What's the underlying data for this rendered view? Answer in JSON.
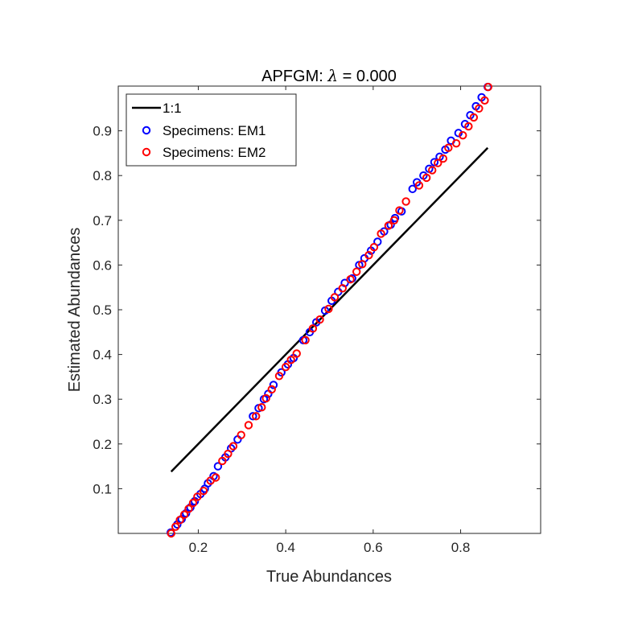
{
  "chart_data": {
    "type": "scatter",
    "title": "APFGM: λ = 0.000",
    "title_prefix": "APFGM: ",
    "title_symbol": "λ",
    "title_suffix": " = 0.000",
    "xlabel": "True Abundances",
    "ylabel": "Estimated Abundances",
    "xlim": [
      0.017,
      0.983
    ],
    "ylim": [
      0.0,
      1.0
    ],
    "xticks": [
      0.2,
      0.4,
      0.6,
      0.8
    ],
    "xtick_labels": [
      "0.2",
      "0.4",
      "0.6",
      "0.8"
    ],
    "yticks": [
      0.1,
      0.2,
      0.3,
      0.4,
      0.5,
      0.6,
      0.7,
      0.8,
      0.9
    ],
    "ytick_labels": [
      "0.1",
      "0.2",
      "0.3",
      "0.4",
      "0.5",
      "0.6",
      "0.7",
      "0.8",
      "0.9"
    ],
    "grid": false,
    "legend_position": "top-left",
    "legend": [
      "1:1",
      "Specimens: EM1",
      "Specimens: EM2"
    ],
    "line_1to1": {
      "name": "1:1",
      "x": [
        0.138,
        0.862
      ],
      "y": [
        0.138,
        0.862
      ],
      "color": "#000000"
    },
    "series": [
      {
        "name": "Specimens: EM1",
        "color": "#0000ff",
        "x": [
          0.137,
          0.152,
          0.162,
          0.172,
          0.182,
          0.192,
          0.205,
          0.215,
          0.222,
          0.235,
          0.245,
          0.262,
          0.275,
          0.29,
          0.325,
          0.338,
          0.35,
          0.36,
          0.372,
          0.39,
          0.405,
          0.418,
          0.44,
          0.455,
          0.47,
          0.49,
          0.505,
          0.52,
          0.535,
          0.552,
          0.568,
          0.58,
          0.595,
          0.61,
          0.625,
          0.64,
          0.65,
          0.665,
          0.69,
          0.7,
          0.715,
          0.728,
          0.74,
          0.752,
          0.765,
          0.778,
          0.795,
          0.81,
          0.822,
          0.835,
          0.848,
          0.862
        ],
        "y": [
          0.002,
          0.02,
          0.032,
          0.045,
          0.058,
          0.072,
          0.088,
          0.1,
          0.112,
          0.128,
          0.15,
          0.17,
          0.19,
          0.21,
          0.262,
          0.28,
          0.3,
          0.312,
          0.332,
          0.36,
          0.378,
          0.392,
          0.432,
          0.45,
          0.472,
          0.498,
          0.52,
          0.54,
          0.56,
          0.57,
          0.6,
          0.615,
          0.632,
          0.652,
          0.675,
          0.69,
          0.705,
          0.72,
          0.77,
          0.785,
          0.8,
          0.815,
          0.83,
          0.842,
          0.858,
          0.878,
          0.895,
          0.915,
          0.935,
          0.955,
          0.975,
          0.998
        ]
      },
      {
        "name": "Specimens: EM2",
        "color": "#ff0000",
        "x": [
          0.138,
          0.148,
          0.158,
          0.168,
          0.178,
          0.188,
          0.198,
          0.212,
          0.228,
          0.24,
          0.255,
          0.268,
          0.28,
          0.298,
          0.315,
          0.332,
          0.345,
          0.355,
          0.368,
          0.385,
          0.4,
          0.412,
          0.425,
          0.445,
          0.462,
          0.478,
          0.498,
          0.512,
          0.53,
          0.548,
          0.562,
          0.575,
          0.59,
          0.602,
          0.618,
          0.635,
          0.648,
          0.66,
          0.675,
          0.705,
          0.722,
          0.735,
          0.748,
          0.76,
          0.772,
          0.79,
          0.805,
          0.818,
          0.83,
          0.842,
          0.855,
          0.863
        ],
        "y": [
          0.0,
          0.015,
          0.03,
          0.042,
          0.055,
          0.068,
          0.082,
          0.095,
          0.118,
          0.125,
          0.162,
          0.178,
          0.195,
          0.22,
          0.242,
          0.262,
          0.282,
          0.302,
          0.322,
          0.352,
          0.372,
          0.388,
          0.402,
          0.432,
          0.458,
          0.478,
          0.502,
          0.528,
          0.548,
          0.568,
          0.585,
          0.602,
          0.622,
          0.64,
          0.67,
          0.688,
          0.7,
          0.722,
          0.742,
          0.778,
          0.795,
          0.812,
          0.828,
          0.838,
          0.862,
          0.872,
          0.89,
          0.91,
          0.93,
          0.95,
          0.968,
          0.998
        ]
      }
    ]
  }
}
